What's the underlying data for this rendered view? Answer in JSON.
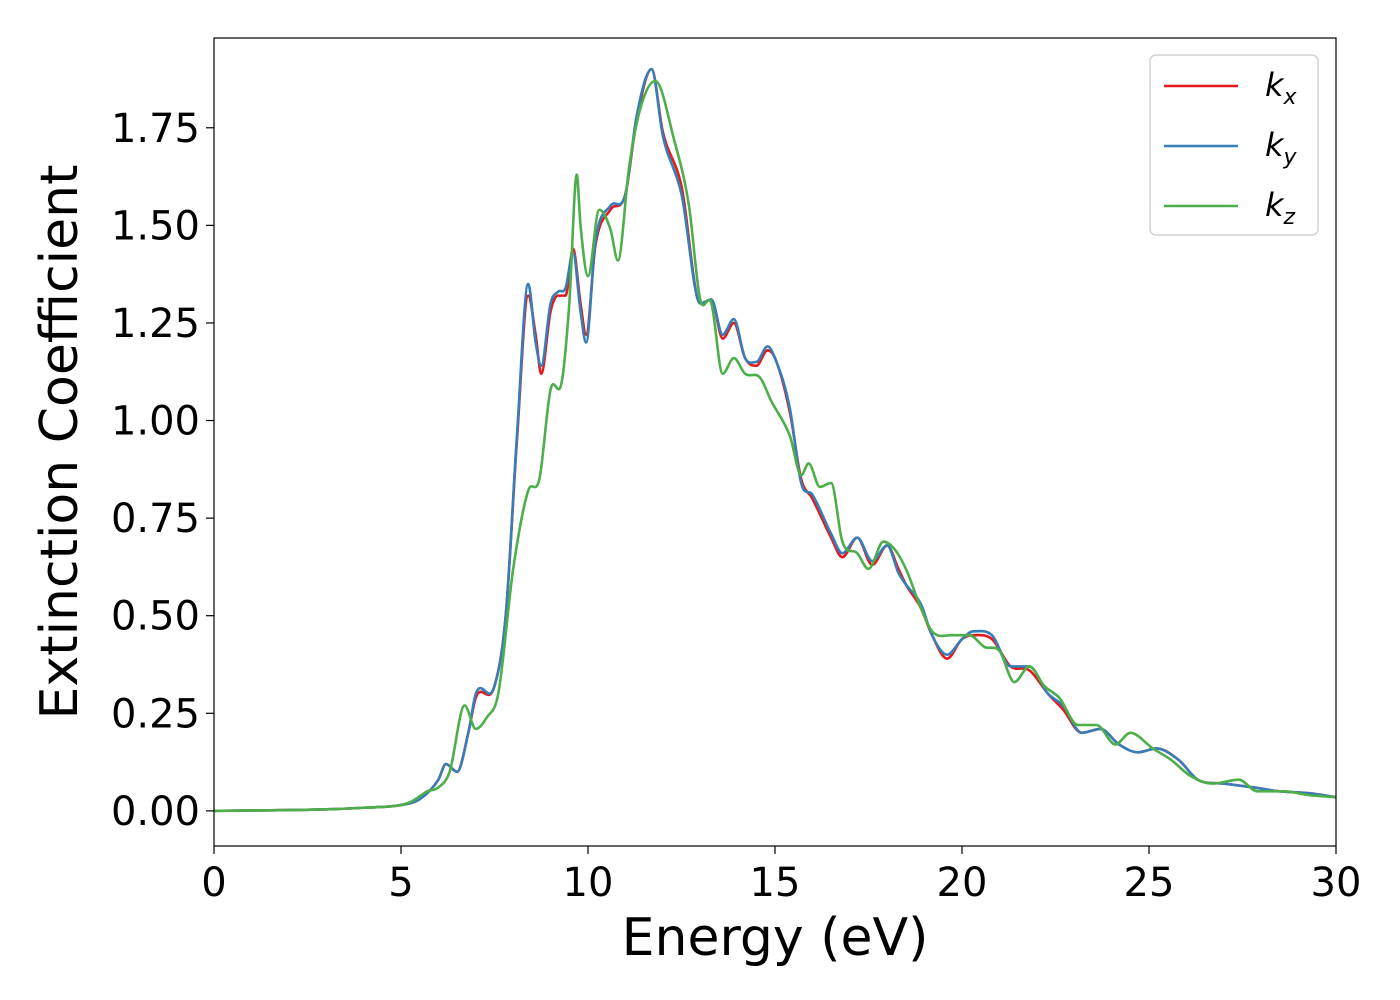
{
  "chart_data": {
    "type": "line",
    "title": "",
    "xlabel": "Energy (eV)",
    "ylabel": "Extinction Coefficient",
    "xlim": [
      0,
      30
    ],
    "ylim": [
      -0.09,
      1.98
    ],
    "xticks": [
      0,
      5,
      10,
      15,
      20,
      25,
      30
    ],
    "xtick_labels": [
      "0",
      "5",
      "10",
      "15",
      "20",
      "25",
      "30"
    ],
    "yticks": [
      0.0,
      0.25,
      0.5,
      0.75,
      1.0,
      1.25,
      1.5,
      1.75
    ],
    "ytick_labels": [
      "0.00",
      "0.25",
      "0.50",
      "0.75",
      "1.00",
      "1.25",
      "1.50",
      "1.75"
    ],
    "grid": false,
    "legend_position": "top-right",
    "series": [
      {
        "name": "k_x",
        "legend_base": "k",
        "legend_sub": "x",
        "color": "#e41a1c",
        "points": [
          [
            0,
            0
          ],
          [
            1,
            0.001
          ],
          [
            2,
            0.002
          ],
          [
            3,
            0.004
          ],
          [
            4,
            0.008
          ],
          [
            5,
            0.015
          ],
          [
            5.5,
            0.03
          ],
          [
            6,
            0.08
          ],
          [
            6.2,
            0.12
          ],
          [
            6.5,
            0.1
          ],
          [
            6.8,
            0.2
          ],
          [
            7,
            0.29
          ],
          [
            7.5,
            0.32
          ],
          [
            7.8,
            0.5
          ],
          [
            8.1,
            0.95
          ],
          [
            8.4,
            1.32
          ],
          [
            8.6,
            1.22
          ],
          [
            8.75,
            1.12
          ],
          [
            9,
            1.28
          ],
          [
            9.2,
            1.32
          ],
          [
            9.4,
            1.32
          ],
          [
            9.6,
            1.44
          ],
          [
            9.8,
            1.3
          ],
          [
            9.95,
            1.22
          ],
          [
            10.2,
            1.45
          ],
          [
            10.6,
            1.54
          ],
          [
            11,
            1.58
          ],
          [
            11.3,
            1.77
          ],
          [
            11.7,
            1.9
          ],
          [
            12,
            1.74
          ],
          [
            12.5,
            1.6
          ],
          [
            13,
            1.3
          ],
          [
            13.3,
            1.31
          ],
          [
            13.6,
            1.21
          ],
          [
            13.9,
            1.25
          ],
          [
            14.2,
            1.16
          ],
          [
            14.5,
            1.14
          ],
          [
            14.8,
            1.18
          ],
          [
            15,
            1.16
          ],
          [
            15.4,
            1.02
          ],
          [
            15.7,
            0.85
          ],
          [
            16,
            0.8
          ],
          [
            16.5,
            0.7
          ],
          [
            16.8,
            0.65
          ],
          [
            17.2,
            0.7
          ],
          [
            17.6,
            0.63
          ],
          [
            18,
            0.68
          ],
          [
            18.3,
            0.62
          ],
          [
            18.5,
            0.58
          ],
          [
            18.9,
            0.52
          ],
          [
            19.2,
            0.45
          ],
          [
            19.6,
            0.39
          ],
          [
            20,
            0.44
          ],
          [
            20.3,
            0.45
          ],
          [
            20.8,
            0.44
          ],
          [
            21.3,
            0.37
          ],
          [
            21.8,
            0.36
          ],
          [
            22.3,
            0.3
          ],
          [
            22.7,
            0.26
          ],
          [
            23.2,
            0.2
          ],
          [
            23.7,
            0.21
          ],
          [
            24.2,
            0.17
          ],
          [
            24.7,
            0.15
          ],
          [
            25.2,
            0.16
          ],
          [
            25.8,
            0.13
          ],
          [
            26.3,
            0.08
          ],
          [
            27,
            0.07
          ],
          [
            27.8,
            0.06
          ],
          [
            28.5,
            0.05
          ],
          [
            29.3,
            0.045
          ],
          [
            30,
            0.035
          ]
        ]
      },
      {
        "name": "k_y",
        "legend_base": "k",
        "legend_sub": "y",
        "color": "#377eb8",
        "points": [
          [
            0,
            0
          ],
          [
            1,
            0.001
          ],
          [
            2,
            0.002
          ],
          [
            3,
            0.004
          ],
          [
            4,
            0.008
          ],
          [
            5,
            0.015
          ],
          [
            5.5,
            0.03
          ],
          [
            6,
            0.08
          ],
          [
            6.2,
            0.12
          ],
          [
            6.5,
            0.1
          ],
          [
            6.8,
            0.2
          ],
          [
            7,
            0.3
          ],
          [
            7.5,
            0.32
          ],
          [
            7.8,
            0.5
          ],
          [
            8.1,
            0.96
          ],
          [
            8.4,
            1.35
          ],
          [
            8.6,
            1.2
          ],
          [
            8.75,
            1.14
          ],
          [
            9,
            1.3
          ],
          [
            9.2,
            1.33
          ],
          [
            9.4,
            1.34
          ],
          [
            9.6,
            1.43
          ],
          [
            9.8,
            1.28
          ],
          [
            9.95,
            1.2
          ],
          [
            10.2,
            1.46
          ],
          [
            10.6,
            1.55
          ],
          [
            11,
            1.58
          ],
          [
            11.3,
            1.78
          ],
          [
            11.7,
            1.9
          ],
          [
            12,
            1.73
          ],
          [
            12.5,
            1.58
          ],
          [
            13,
            1.3
          ],
          [
            13.3,
            1.31
          ],
          [
            13.6,
            1.22
          ],
          [
            13.9,
            1.26
          ],
          [
            14.2,
            1.16
          ],
          [
            14.5,
            1.15
          ],
          [
            14.8,
            1.19
          ],
          [
            15,
            1.16
          ],
          [
            15.4,
            1.03
          ],
          [
            15.7,
            0.84
          ],
          [
            16,
            0.81
          ],
          [
            16.5,
            0.71
          ],
          [
            16.8,
            0.66
          ],
          [
            17.2,
            0.7
          ],
          [
            17.6,
            0.64
          ],
          [
            18,
            0.68
          ],
          [
            18.3,
            0.61
          ],
          [
            18.5,
            0.58
          ],
          [
            18.9,
            0.53
          ],
          [
            19.2,
            0.45
          ],
          [
            19.6,
            0.4
          ],
          [
            20,
            0.44
          ],
          [
            20.3,
            0.46
          ],
          [
            20.8,
            0.45
          ],
          [
            21.3,
            0.37
          ],
          [
            21.8,
            0.37
          ],
          [
            22.3,
            0.3
          ],
          [
            22.7,
            0.27
          ],
          [
            23.2,
            0.2
          ],
          [
            23.7,
            0.21
          ],
          [
            24.2,
            0.17
          ],
          [
            24.7,
            0.15
          ],
          [
            25.2,
            0.16
          ],
          [
            25.8,
            0.13
          ],
          [
            26.3,
            0.08
          ],
          [
            27,
            0.07
          ],
          [
            27.8,
            0.06
          ],
          [
            28.5,
            0.05
          ],
          [
            29.3,
            0.045
          ],
          [
            30,
            0.035
          ]
        ]
      },
      {
        "name": "k_z",
        "legend_base": "k",
        "legend_sub": "z",
        "color": "#4daf4a",
        "points": [
          [
            0,
            0
          ],
          [
            1,
            0.001
          ],
          [
            2,
            0.002
          ],
          [
            3,
            0.004
          ],
          [
            4,
            0.008
          ],
          [
            5,
            0.015
          ],
          [
            5.3,
            0.025
          ],
          [
            5.7,
            0.05
          ],
          [
            6,
            0.06
          ],
          [
            6.3,
            0.1
          ],
          [
            6.7,
            0.27
          ],
          [
            7,
            0.21
          ],
          [
            7.3,
            0.24
          ],
          [
            7.6,
            0.3
          ],
          [
            8,
            0.62
          ],
          [
            8.4,
            0.82
          ],
          [
            8.7,
            0.85
          ],
          [
            9,
            1.08
          ],
          [
            9.3,
            1.1
          ],
          [
            9.5,
            1.3
          ],
          [
            9.7,
            1.63
          ],
          [
            9.8,
            1.5
          ],
          [
            10,
            1.37
          ],
          [
            10.3,
            1.54
          ],
          [
            10.6,
            1.49
          ],
          [
            10.8,
            1.41
          ],
          [
            11.1,
            1.65
          ],
          [
            11.4,
            1.8
          ],
          [
            11.8,
            1.87
          ],
          [
            12.3,
            1.72
          ],
          [
            12.7,
            1.55
          ],
          [
            13,
            1.31
          ],
          [
            13.3,
            1.3
          ],
          [
            13.6,
            1.12
          ],
          [
            13.9,
            1.16
          ],
          [
            14.2,
            1.12
          ],
          [
            14.6,
            1.11
          ],
          [
            14.9,
            1.05
          ],
          [
            15.4,
            0.96
          ],
          [
            15.7,
            0.86
          ],
          [
            15.9,
            0.89
          ],
          [
            16.2,
            0.83
          ],
          [
            16.5,
            0.84
          ],
          [
            16.8,
            0.69
          ],
          [
            17.2,
            0.66
          ],
          [
            17.5,
            0.62
          ],
          [
            17.9,
            0.69
          ],
          [
            18.2,
            0.67
          ],
          [
            18.5,
            0.62
          ],
          [
            18.9,
            0.52
          ],
          [
            19.2,
            0.46
          ],
          [
            19.7,
            0.45
          ],
          [
            20.2,
            0.45
          ],
          [
            20.6,
            0.42
          ],
          [
            21,
            0.41
          ],
          [
            21.4,
            0.33
          ],
          [
            21.8,
            0.37
          ],
          [
            22.2,
            0.32
          ],
          [
            22.6,
            0.29
          ],
          [
            23.1,
            0.22
          ],
          [
            23.6,
            0.22
          ],
          [
            24.1,
            0.17
          ],
          [
            24.5,
            0.2
          ],
          [
            25.1,
            0.16
          ],
          [
            25.6,
            0.13
          ],
          [
            26.1,
            0.09
          ],
          [
            26.7,
            0.07
          ],
          [
            27.4,
            0.08
          ],
          [
            27.9,
            0.05
          ],
          [
            28.6,
            0.05
          ],
          [
            29.3,
            0.04
          ],
          [
            30,
            0.035
          ]
        ]
      }
    ]
  }
}
